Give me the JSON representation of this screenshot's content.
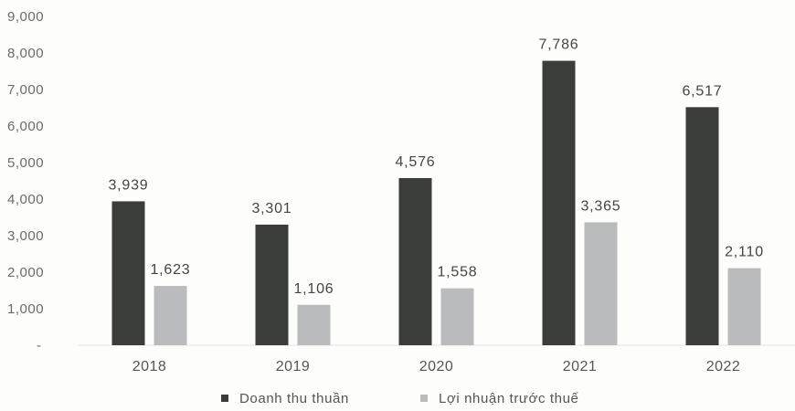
{
  "chart_data": {
    "type": "bar",
    "title": "",
    "xlabel": "",
    "ylabel": "",
    "categories": [
      "2018",
      "2019",
      "2020",
      "2021",
      "2022"
    ],
    "series": [
      {
        "name": "Doanh thu thuần",
        "values": [
          3939,
          3301,
          4576,
          7786,
          6517
        ],
        "labels": [
          "3,939",
          "3,301",
          "4,576",
          "7,786",
          "6,517"
        ],
        "color": "#3b3d3b"
      },
      {
        "name": "Lợi nhuận trước thuế",
        "values": [
          1623,
          1106,
          1558,
          3365,
          2110
        ],
        "labels": [
          "1,623",
          "1,106",
          "1,558",
          "3,365",
          "2,110"
        ],
        "color": "#b9bbbd"
      }
    ],
    "ylim": [
      0,
      9000
    ],
    "yticks": [
      0,
      1000,
      2000,
      3000,
      4000,
      5000,
      6000,
      7000,
      8000,
      9000
    ],
    "ytick_labels": [
      "-",
      "1,000",
      "2,000",
      "3,000",
      "4,000",
      "5,000",
      "6,000",
      "7,000",
      "8,000",
      "9,000"
    ],
    "grid": false,
    "legend_position": "bottom"
  }
}
